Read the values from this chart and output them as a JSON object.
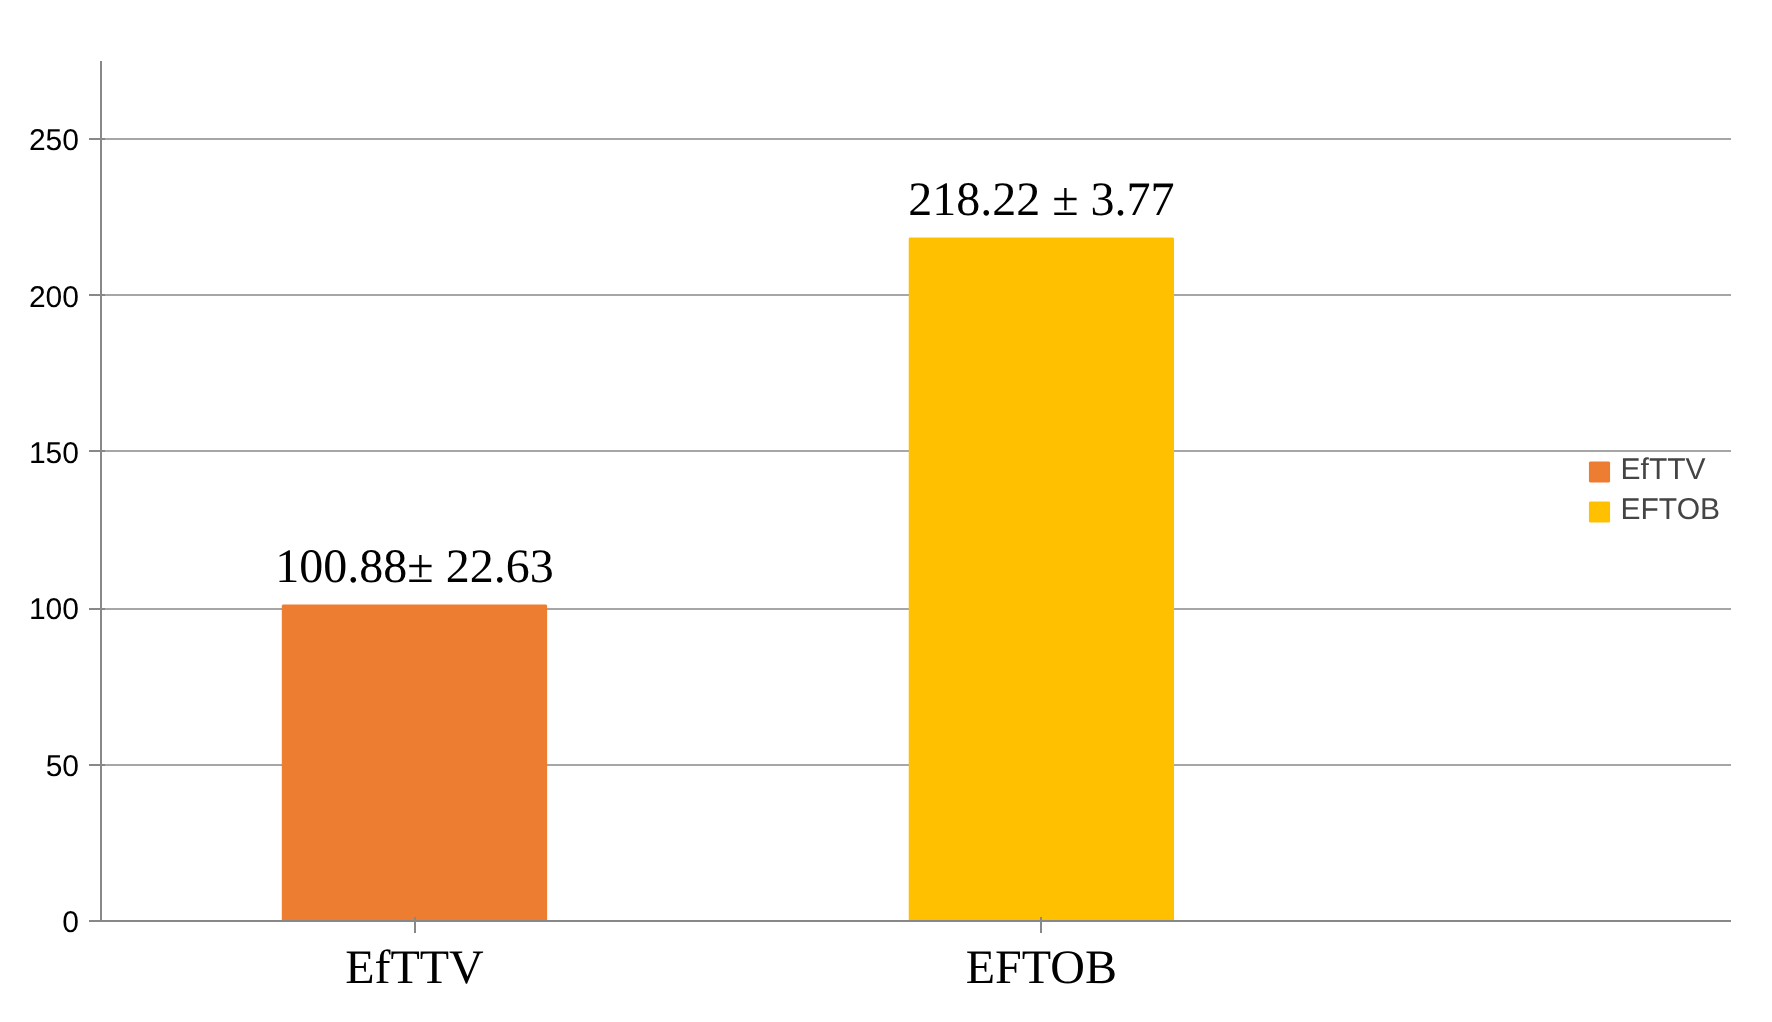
{
  "chart_data": {
    "type": "bar",
    "categories": [
      "EfTTV",
      "EFTOB"
    ],
    "series": [
      {
        "name": "EfTTV",
        "color": "#ed7d31",
        "values": [
          100.88,
          null
        ],
        "value_labels": [
          "100.88± 22.63",
          null
        ]
      },
      {
        "name": "EFTOB",
        "color": "#ffc000",
        "values": [
          null,
          218.22
        ],
        "value_labels": [
          null,
          "218.22 ± 3.77"
        ]
      }
    ],
    "ylim": [
      0,
      275
    ],
    "yticks": [
      0,
      50,
      100,
      150,
      200,
      250
    ],
    "grid": "y",
    "legend": "right"
  }
}
